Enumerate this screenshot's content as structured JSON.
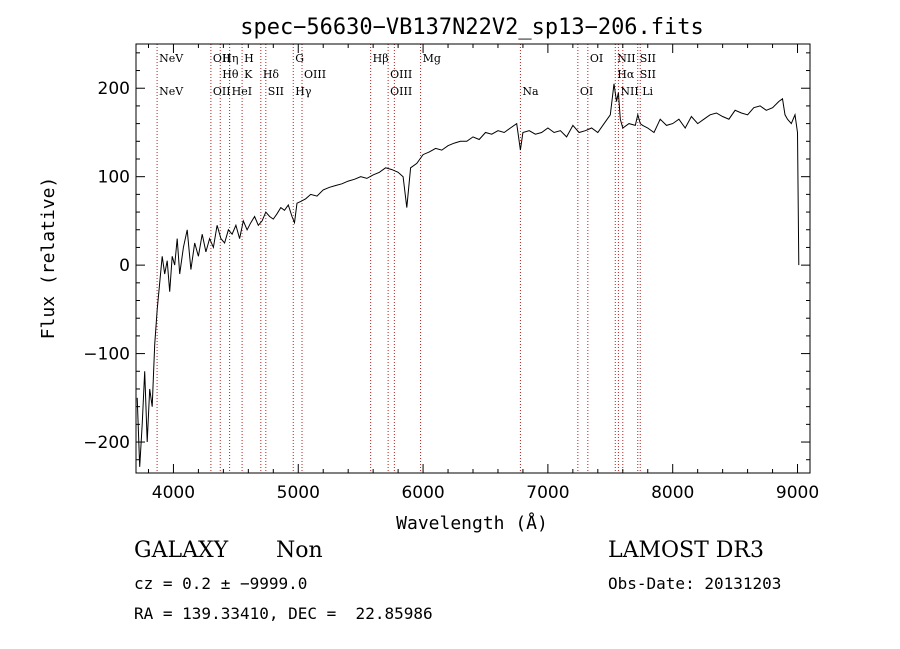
{
  "chart_data": {
    "type": "line",
    "title": "spec−56630−VB137N22V2_sp13−206.fits",
    "xlabel": "Wavelength (Å)",
    "ylabel": "Flux (relative)",
    "xlim": [
      3700,
      9100
    ],
    "ylim": [
      -235,
      250
    ],
    "xticks": [
      4000,
      5000,
      6000,
      7000,
      8000,
      9000
    ],
    "xtick_labels": [
      "4000",
      "5000",
      "6000",
      "7000",
      "8000",
      "9000"
    ],
    "yticks": [
      -200,
      -100,
      0,
      100,
      200
    ],
    "ytick_labels": [
      "−200",
      "−100",
      "0",
      "100",
      "200"
    ],
    "grid": false,
    "line_color": "#000000",
    "marker_color": "#b22222",
    "series": [
      {
        "x": [
          3710,
          3730,
          3750,
          3770,
          3790,
          3810,
          3830,
          3850,
          3870,
          3890,
          3910,
          3930,
          3950,
          3970,
          3990,
          4010,
          4030,
          4050,
          4080,
          4110,
          4140,
          4170,
          4200,
          4230,
          4260,
          4290,
          4320,
          4350,
          4380,
          4410,
          4440,
          4470,
          4500,
          4530,
          4560,
          4590,
          4620,
          4650,
          4680,
          4710,
          4740,
          4770,
          4800,
          4830,
          4860,
          4890,
          4920,
          4950,
          4970,
          4990,
          5020,
          5060,
          5100,
          5150,
          5200,
          5250,
          5300,
          5350,
          5400,
          5450,
          5500,
          5550,
          5600,
          5650,
          5700,
          5750,
          5800,
          5840,
          5870,
          5900,
          5950,
          6000,
          6050,
          6100,
          6150,
          6200,
          6250,
          6300,
          6350,
          6400,
          6450,
          6500,
          6550,
          6600,
          6650,
          6700,
          6750,
          6780,
          6800,
          6850,
          6900,
          6950,
          7000,
          7050,
          7100,
          7150,
          7200,
          7250,
          7300,
          7350,
          7400,
          7450,
          7500,
          7530,
          7550,
          7565,
          7580,
          7600,
          7650,
          7700,
          7720,
          7740,
          7760,
          7800,
          7850,
          7900,
          7950,
          8000,
          8050,
          8100,
          8150,
          8200,
          8250,
          8300,
          8350,
          8400,
          8450,
          8500,
          8550,
          8600,
          8650,
          8700,
          8750,
          8800,
          8850,
          8880,
          8900,
          8920,
          8950,
          8980,
          9000,
          9010
        ],
        "y": [
          -150,
          -228,
          -180,
          -120,
          -200,
          -140,
          -160,
          -90,
          -50,
          -20,
          10,
          -10,
          5,
          -30,
          10,
          0,
          30,
          -10,
          20,
          40,
          -5,
          25,
          10,
          35,
          15,
          30,
          20,
          45,
          30,
          25,
          40,
          35,
          45,
          30,
          50,
          40,
          48,
          55,
          45,
          50,
          60,
          55,
          52,
          58,
          65,
          62,
          68,
          55,
          48,
          70,
          72,
          75,
          80,
          78,
          85,
          88,
          90,
          92,
          95,
          97,
          100,
          98,
          102,
          105,
          110,
          108,
          105,
          100,
          65,
          110,
          115,
          125,
          128,
          132,
          130,
          135,
          138,
          140,
          140,
          145,
          142,
          150,
          148,
          152,
          150,
          155,
          160,
          130,
          150,
          152,
          148,
          150,
          155,
          150,
          152,
          145,
          158,
          150,
          152,
          155,
          150,
          160,
          170,
          205,
          185,
          195,
          165,
          155,
          160,
          158,
          170,
          160,
          158,
          155,
          150,
          165,
          158,
          160,
          165,
          155,
          168,
          160,
          165,
          170,
          172,
          168,
          165,
          175,
          172,
          170,
          178,
          180,
          175,
          178,
          185,
          188,
          170,
          165,
          160,
          170,
          150,
          0
        ]
      }
    ],
    "lines": [
      {
        "x": 3869,
        "top": "NeV",
        "bottom": "NeV"
      },
      {
        "x": 4300,
        "top": "OII",
        "bottom": "OII"
      },
      {
        "x": 4375,
        "top": "Hη",
        "bottom": "Hθ"
      },
      {
        "x": 4450,
        "top": "",
        "bottom": "HeI"
      },
      {
        "x": 4550,
        "top": "H",
        "bottom": "K"
      },
      {
        "x": 4700,
        "top": "",
        "bottom": "Hδ"
      },
      {
        "x": 4740,
        "top": "",
        "bottom": "SII"
      },
      {
        "x": 4960,
        "top": "G",
        "bottom": "Hγ"
      },
      {
        "x": 5030,
        "top": "",
        "bottom": "OIII"
      },
      {
        "x": 5580,
        "top": "Hβ",
        "bottom": ""
      },
      {
        "x": 5720,
        "top": "",
        "bottom": "OIII"
      },
      {
        "x": 5770,
        "top": "",
        "bottom": ""
      },
      {
        "x": 5980,
        "top": "Mg",
        "bottom": ""
      },
      {
        "x": 6780,
        "top": "",
        "bottom": "Na"
      },
      {
        "x": 7240,
        "top": "",
        "bottom": "OI"
      },
      {
        "x": 7320,
        "top": "OI",
        "bottom": ""
      },
      {
        "x": 7540,
        "top": "NII",
        "bottom": "Hα"
      },
      {
        "x": 7565,
        "top": "",
        "bottom": "NII"
      },
      {
        "x": 7600,
        "top": "",
        "bottom": ""
      },
      {
        "x": 7720,
        "top": "SII",
        "bottom": "SII"
      },
      {
        "x": 7740,
        "top": "",
        "bottom": "Li"
      }
    ],
    "line_labels_top": [
      "NeV",
      "OII",
      "Hη",
      "H",
      "G",
      "Hβ",
      "Mg",
      "OI",
      "NII",
      "SII"
    ],
    "line_labels_mid": [
      "Hθ",
      "K",
      "Hδ",
      "OIII",
      "OIII",
      "Hα",
      "SII"
    ],
    "line_labels_bottom": [
      "NeV",
      "OII",
      "HeI",
      "SII",
      "Hγ",
      "OIII",
      "Na",
      "OI",
      "NII",
      "Li"
    ]
  },
  "info": {
    "object_class": "GALAXY",
    "subclass": "Non",
    "survey": "LAMOST DR3",
    "cz": "cz = 0.2 ± −9999.0",
    "obs_date": "Obs-Date: 20131203",
    "coords": "RA = 139.33410, DEC =  22.85986"
  }
}
